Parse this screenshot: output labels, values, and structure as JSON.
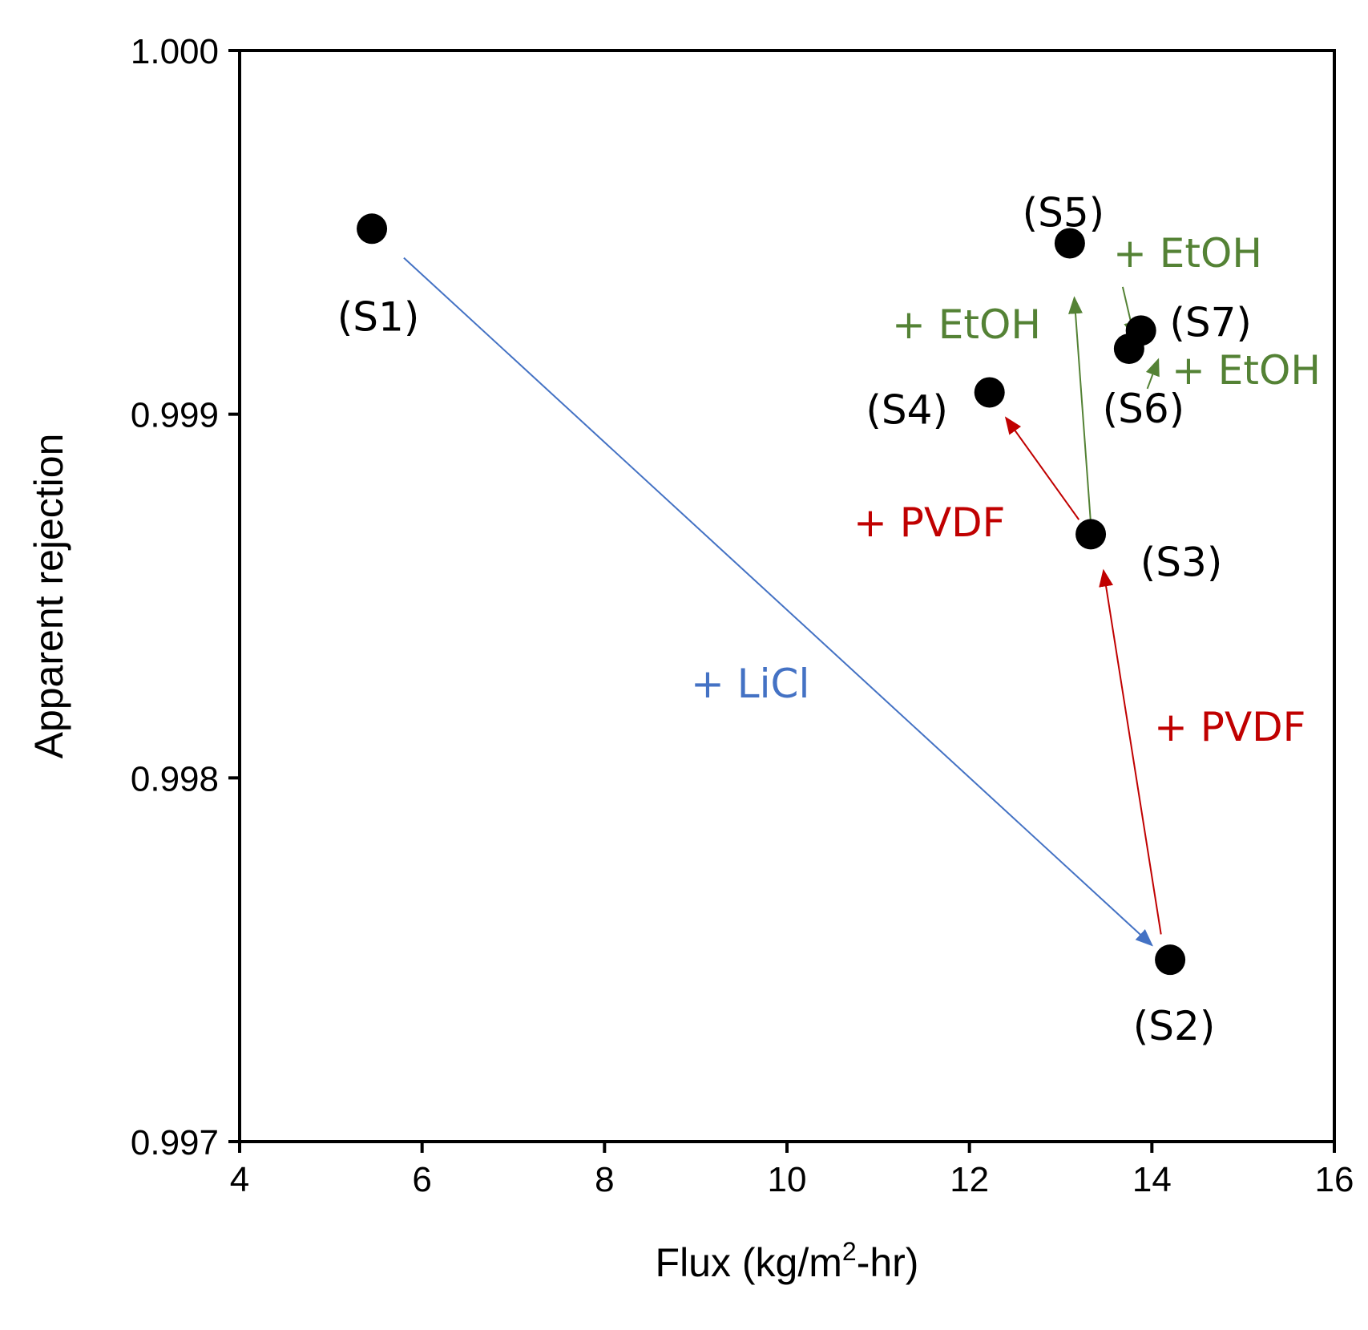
{
  "chart_data": {
    "type": "scatter",
    "title": "",
    "xlabel": "Flux (kg/m",
    "xlabel_sup": "2",
    "xlabel_suffix": "-hr)",
    "ylabel": "Apparent rejection",
    "xlim": [
      4,
      16
    ],
    "ylim": [
      0.997,
      1.0
    ],
    "xticks": [
      "4",
      "6",
      "8",
      "10",
      "12",
      "14",
      "16"
    ],
    "yticks": [
      "0.997",
      "0.998",
      "0.999",
      "1.000"
    ],
    "grid": false,
    "points": [
      {
        "label": "(S1)",
        "x": 5.45,
        "y": 0.99951
      },
      {
        "label": "(S2)",
        "x": 14.2,
        "y": 0.9975
      },
      {
        "label": "(S3)",
        "x": 13.33,
        "y": 0.99867
      },
      {
        "label": "(S4)",
        "x": 12.22,
        "y": 0.99906
      },
      {
        "label": "(S5)",
        "x": 13.1,
        "y": 0.99947
      },
      {
        "label": "(S6)",
        "x": 13.75,
        "y": 0.99918
      },
      {
        "label": "(S7)",
        "x": 13.88,
        "y": 0.99923
      }
    ],
    "annotations": [
      {
        "text": "+ LiCl",
        "color": "#4472C4",
        "from": [
          5.8,
          0.99943
        ],
        "to": [
          14.0,
          0.99754
        ]
      },
      {
        "text": "+ PVDF",
        "color": "#C00000",
        "from": [
          14.1,
          0.99757
        ],
        "to": [
          13.47,
          0.99857
        ]
      },
      {
        "text": "+ PVDF",
        "color": "#C00000",
        "from": [
          13.2,
          0.99871
        ],
        "to": [
          12.4,
          0.99899
        ]
      },
      {
        "text": "+ EtOH",
        "color": "#548235",
        "from": [
          13.33,
          0.9987
        ],
        "to": [
          13.15,
          0.99932
        ]
      },
      {
        "text": "+ EtOH",
        "color": "#548235",
        "from": [
          13.68,
          0.99935
        ],
        "to": [
          13.81,
          0.99921
        ]
      },
      {
        "text": "+ EtOH",
        "color": "#548235",
        "from": [
          13.95,
          0.99907
        ],
        "to": [
          14.07,
          0.99915
        ]
      }
    ]
  }
}
